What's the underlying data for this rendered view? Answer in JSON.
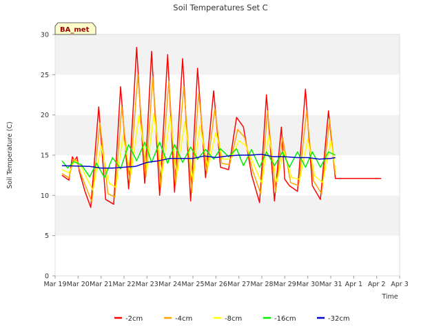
{
  "chart_data": {
    "type": "line",
    "title": "Soil Temperatures Set C",
    "xlabel": "Time",
    "ylabel": "Soil Temperature (C)",
    "badge": "BA_met",
    "ylim": [
      0,
      30
    ],
    "yticks": [
      0,
      5,
      10,
      15,
      20,
      25,
      30
    ],
    "xlim": [
      0,
      15
    ],
    "x_tick_labels": [
      "Mar 19",
      "Mar 20",
      "Mar 21",
      "Mar 22",
      "Mar 23",
      "Mar 24",
      "Mar 25",
      "Mar 26",
      "Mar 27",
      "Mar 28",
      "Mar 29",
      "Mar 30",
      "Mar 31",
      "Apr 1",
      "Apr 2",
      "Apr 3"
    ],
    "grid": "horizontal bands",
    "legend_position": "bottom",
    "x_unit": "days since Mar 19",
    "series": [
      {
        "name": "-2cm",
        "color": "#ff0000",
        "x": [
          0.3,
          0.6,
          0.75,
          0.85,
          0.95,
          1.05,
          1.3,
          1.55,
          1.9,
          2.2,
          2.55,
          2.85,
          3.2,
          3.55,
          3.9,
          4.2,
          4.55,
          4.9,
          5.2,
          5.55,
          5.9,
          6.2,
          6.55,
          6.9,
          7.2,
          7.55,
          7.9,
          8.2,
          8.55,
          8.9,
          9.2,
          9.55,
          9.85,
          10.0,
          10.2,
          10.55,
          10.9,
          11.2,
          11.55,
          11.9,
          12.2,
          12.55,
          12.9,
          13.2,
          13.55,
          13.9,
          14.2
        ],
        "y": [
          12.5,
          11.9,
          14.8,
          14.3,
          14.8,
          13.0,
          10.5,
          8.5,
          21.0,
          9.5,
          8.9,
          23.5,
          10.8,
          28.4,
          11.5,
          27.9,
          10.0,
          27.5,
          10.4,
          27.0,
          9.3,
          25.8,
          12.2,
          23.0,
          13.5,
          13.2,
          19.7,
          18.5,
          12.6,
          9.1,
          22.5,
          9.3,
          18.5,
          12.0,
          11.2,
          10.5,
          23.2,
          11.2,
          9.5,
          20.5,
          12.1,
          12.1,
          12.1,
          12.1,
          12.1,
          12.1,
          12.1
        ]
      },
      {
        "name": "-4cm",
        "color": "#ffa500",
        "x": [
          0.3,
          0.6,
          0.8,
          0.95,
          1.1,
          1.35,
          1.6,
          1.95,
          2.3,
          2.6,
          2.9,
          3.25,
          3.6,
          3.95,
          4.25,
          4.6,
          4.95,
          5.25,
          5.6,
          5.95,
          6.25,
          6.6,
          6.95,
          7.25,
          7.6,
          7.95,
          8.25,
          8.6,
          8.95,
          9.25,
          9.6,
          9.9,
          10.25,
          10.6,
          10.95,
          11.25,
          11.6,
          11.95,
          12.2
        ],
        "y": [
          12.7,
          12.2,
          14.5,
          14.3,
          12.8,
          11.0,
          9.2,
          19.0,
          10.2,
          9.8,
          21.0,
          11.6,
          25.0,
          12.3,
          24.7,
          11.0,
          24.2,
          11.4,
          23.5,
          10.4,
          22.7,
          12.8,
          20.8,
          14.0,
          13.8,
          18.2,
          17.2,
          13.1,
          10.2,
          20.5,
          10.4,
          17.2,
          11.6,
          11.2,
          20.5,
          11.8,
          10.2,
          19.5,
          12.6
        ]
      },
      {
        "name": "-8cm",
        "color": "#ffff00",
        "x": [
          0.3,
          0.6,
          0.85,
          1.1,
          1.4,
          1.65,
          2.0,
          2.35,
          2.65,
          2.95,
          3.3,
          3.65,
          4.0,
          4.3,
          4.65,
          5.0,
          5.3,
          5.65,
          6.0,
          6.3,
          6.65,
          7.0,
          7.3,
          7.65,
          8.0,
          8.3,
          8.65,
          9.0,
          9.3,
          9.65,
          9.95,
          10.3,
          10.65,
          11.0,
          11.3,
          11.65,
          12.0,
          12.2
        ],
        "y": [
          13.2,
          12.8,
          14.3,
          13.8,
          12.0,
          10.6,
          16.2,
          11.5,
          11.0,
          17.4,
          12.6,
          20.0,
          13.2,
          20.2,
          12.5,
          19.8,
          12.5,
          19.2,
          11.8,
          18.7,
          13.5,
          17.8,
          14.5,
          14.5,
          16.8,
          16.2,
          13.8,
          11.5,
          17.5,
          11.6,
          15.6,
          12.2,
          12.0,
          17.0,
          12.4,
          11.6,
          16.8,
          13.2
        ]
      },
      {
        "name": "-16cm",
        "color": "#00ee00",
        "x": [
          0.3,
          0.55,
          0.8,
          1.15,
          1.5,
          1.8,
          2.15,
          2.5,
          2.85,
          3.2,
          3.55,
          3.9,
          4.2,
          4.55,
          4.9,
          5.2,
          5.55,
          5.9,
          6.2,
          6.55,
          6.9,
          7.2,
          7.55,
          7.9,
          8.2,
          8.55,
          8.9,
          9.2,
          9.55,
          9.9,
          10.2,
          10.55,
          10.9,
          11.2,
          11.55,
          11.9,
          12.2
        ],
        "y": [
          14.3,
          13.4,
          14.2,
          13.8,
          12.3,
          14.0,
          12.2,
          14.7,
          13.3,
          16.3,
          14.3,
          16.6,
          14.1,
          16.6,
          14.0,
          16.3,
          14.1,
          16.0,
          14.5,
          15.7,
          14.5,
          15.8,
          14.8,
          15.8,
          13.7,
          15.7,
          13.5,
          15.4,
          13.7,
          15.4,
          13.5,
          15.4,
          13.5,
          15.4,
          13.5,
          15.4,
          15.0
        ]
      },
      {
        "name": "-32cm",
        "color": "#0000cc",
        "x": [
          0.3,
          1.5,
          2.0,
          2.5,
          3.0,
          3.5,
          4.0,
          4.5,
          5.0,
          5.5,
          6.0,
          6.5,
          7.0,
          7.5,
          8.0,
          8.5,
          9.0,
          9.5,
          10.0,
          10.5,
          11.0,
          11.5,
          12.0,
          12.2
        ],
        "y": [
          13.7,
          13.6,
          13.4,
          13.4,
          13.5,
          13.6,
          14.1,
          14.3,
          14.6,
          14.6,
          14.6,
          14.9,
          14.7,
          14.9,
          15.0,
          15.0,
          15.1,
          14.8,
          14.8,
          14.7,
          14.7,
          14.5,
          14.6,
          14.7
        ]
      }
    ]
  }
}
